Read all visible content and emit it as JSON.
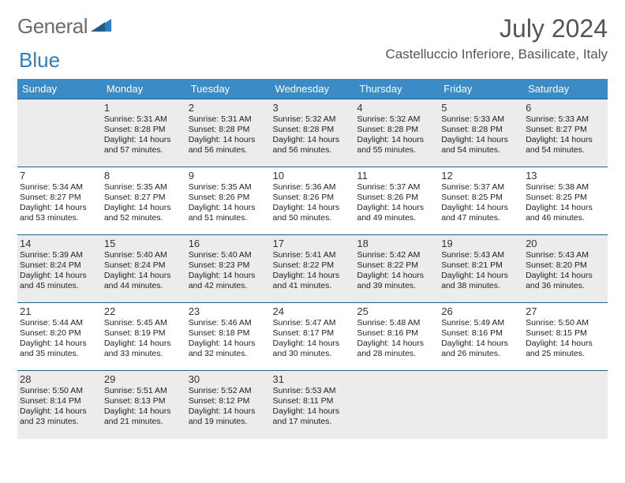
{
  "brand": {
    "word1": "General",
    "word2": "Blue"
  },
  "title": "July 2024",
  "location": "Castelluccio Inferiore, Basilicate, Italy",
  "colors": {
    "header_bg": "#3b8bc7",
    "header_text": "#ffffff",
    "row_alt_bg": "#ececec",
    "row_bg": "#ffffff",
    "cell_border": "#1f5f8a",
    "brand_gray": "#6b6b6b",
    "brand_blue": "#2f7fbf",
    "title_color": "#555555"
  },
  "day_headers": [
    "Sunday",
    "Monday",
    "Tuesday",
    "Wednesday",
    "Thursday",
    "Friday",
    "Saturday"
  ],
  "weeks": [
    [
      {},
      {
        "n": "1",
        "sunrise": "Sunrise: 5:31 AM",
        "sunset": "Sunset: 8:28 PM",
        "daylight": "Daylight: 14 hours and 57 minutes."
      },
      {
        "n": "2",
        "sunrise": "Sunrise: 5:31 AM",
        "sunset": "Sunset: 8:28 PM",
        "daylight": "Daylight: 14 hours and 56 minutes."
      },
      {
        "n": "3",
        "sunrise": "Sunrise: 5:32 AM",
        "sunset": "Sunset: 8:28 PM",
        "daylight": "Daylight: 14 hours and 56 minutes."
      },
      {
        "n": "4",
        "sunrise": "Sunrise: 5:32 AM",
        "sunset": "Sunset: 8:28 PM",
        "daylight": "Daylight: 14 hours and 55 minutes."
      },
      {
        "n": "5",
        "sunrise": "Sunrise: 5:33 AM",
        "sunset": "Sunset: 8:28 PM",
        "daylight": "Daylight: 14 hours and 54 minutes."
      },
      {
        "n": "6",
        "sunrise": "Sunrise: 5:33 AM",
        "sunset": "Sunset: 8:27 PM",
        "daylight": "Daylight: 14 hours and 54 minutes."
      }
    ],
    [
      {
        "n": "7",
        "sunrise": "Sunrise: 5:34 AM",
        "sunset": "Sunset: 8:27 PM",
        "daylight": "Daylight: 14 hours and 53 minutes."
      },
      {
        "n": "8",
        "sunrise": "Sunrise: 5:35 AM",
        "sunset": "Sunset: 8:27 PM",
        "daylight": "Daylight: 14 hours and 52 minutes."
      },
      {
        "n": "9",
        "sunrise": "Sunrise: 5:35 AM",
        "sunset": "Sunset: 8:26 PM",
        "daylight": "Daylight: 14 hours and 51 minutes."
      },
      {
        "n": "10",
        "sunrise": "Sunrise: 5:36 AM",
        "sunset": "Sunset: 8:26 PM",
        "daylight": "Daylight: 14 hours and 50 minutes."
      },
      {
        "n": "11",
        "sunrise": "Sunrise: 5:37 AM",
        "sunset": "Sunset: 8:26 PM",
        "daylight": "Daylight: 14 hours and 49 minutes."
      },
      {
        "n": "12",
        "sunrise": "Sunrise: 5:37 AM",
        "sunset": "Sunset: 8:25 PM",
        "daylight": "Daylight: 14 hours and 47 minutes."
      },
      {
        "n": "13",
        "sunrise": "Sunrise: 5:38 AM",
        "sunset": "Sunset: 8:25 PM",
        "daylight": "Daylight: 14 hours and 46 minutes."
      }
    ],
    [
      {
        "n": "14",
        "sunrise": "Sunrise: 5:39 AM",
        "sunset": "Sunset: 8:24 PM",
        "daylight": "Daylight: 14 hours and 45 minutes."
      },
      {
        "n": "15",
        "sunrise": "Sunrise: 5:40 AM",
        "sunset": "Sunset: 8:24 PM",
        "daylight": "Daylight: 14 hours and 44 minutes."
      },
      {
        "n": "16",
        "sunrise": "Sunrise: 5:40 AM",
        "sunset": "Sunset: 8:23 PM",
        "daylight": "Daylight: 14 hours and 42 minutes."
      },
      {
        "n": "17",
        "sunrise": "Sunrise: 5:41 AM",
        "sunset": "Sunset: 8:22 PM",
        "daylight": "Daylight: 14 hours and 41 minutes."
      },
      {
        "n": "18",
        "sunrise": "Sunrise: 5:42 AM",
        "sunset": "Sunset: 8:22 PM",
        "daylight": "Daylight: 14 hours and 39 minutes."
      },
      {
        "n": "19",
        "sunrise": "Sunrise: 5:43 AM",
        "sunset": "Sunset: 8:21 PM",
        "daylight": "Daylight: 14 hours and 38 minutes."
      },
      {
        "n": "20",
        "sunrise": "Sunrise: 5:43 AM",
        "sunset": "Sunset: 8:20 PM",
        "daylight": "Daylight: 14 hours and 36 minutes."
      }
    ],
    [
      {
        "n": "21",
        "sunrise": "Sunrise: 5:44 AM",
        "sunset": "Sunset: 8:20 PM",
        "daylight": "Daylight: 14 hours and 35 minutes."
      },
      {
        "n": "22",
        "sunrise": "Sunrise: 5:45 AM",
        "sunset": "Sunset: 8:19 PM",
        "daylight": "Daylight: 14 hours and 33 minutes."
      },
      {
        "n": "23",
        "sunrise": "Sunrise: 5:46 AM",
        "sunset": "Sunset: 8:18 PM",
        "daylight": "Daylight: 14 hours and 32 minutes."
      },
      {
        "n": "24",
        "sunrise": "Sunrise: 5:47 AM",
        "sunset": "Sunset: 8:17 PM",
        "daylight": "Daylight: 14 hours and 30 minutes."
      },
      {
        "n": "25",
        "sunrise": "Sunrise: 5:48 AM",
        "sunset": "Sunset: 8:16 PM",
        "daylight": "Daylight: 14 hours and 28 minutes."
      },
      {
        "n": "26",
        "sunrise": "Sunrise: 5:49 AM",
        "sunset": "Sunset: 8:16 PM",
        "daylight": "Daylight: 14 hours and 26 minutes."
      },
      {
        "n": "27",
        "sunrise": "Sunrise: 5:50 AM",
        "sunset": "Sunset: 8:15 PM",
        "daylight": "Daylight: 14 hours and 25 minutes."
      }
    ],
    [
      {
        "n": "28",
        "sunrise": "Sunrise: 5:50 AM",
        "sunset": "Sunset: 8:14 PM",
        "daylight": "Daylight: 14 hours and 23 minutes."
      },
      {
        "n": "29",
        "sunrise": "Sunrise: 5:51 AM",
        "sunset": "Sunset: 8:13 PM",
        "daylight": "Daylight: 14 hours and 21 minutes."
      },
      {
        "n": "30",
        "sunrise": "Sunrise: 5:52 AM",
        "sunset": "Sunset: 8:12 PM",
        "daylight": "Daylight: 14 hours and 19 minutes."
      },
      {
        "n": "31",
        "sunrise": "Sunrise: 5:53 AM",
        "sunset": "Sunset: 8:11 PM",
        "daylight": "Daylight: 14 hours and 17 minutes."
      },
      {},
      {},
      {}
    ]
  ]
}
